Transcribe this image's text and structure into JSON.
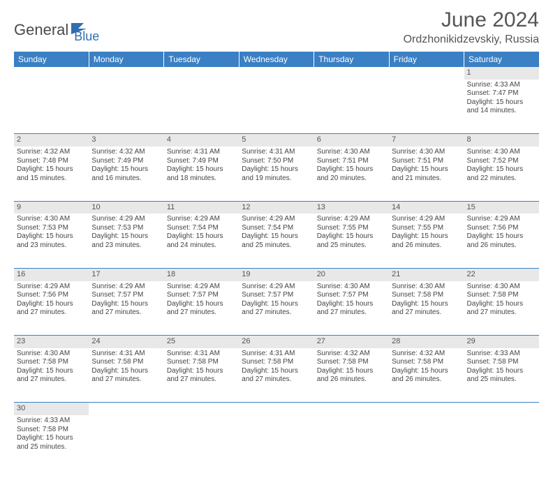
{
  "logo": {
    "text1": "General",
    "text2": "Blue"
  },
  "title": "June 2024",
  "location": "Ordzhonikidzevskiy, Russia",
  "colors": {
    "header_bg": "#3b7fc4",
    "header_text": "#ffffff",
    "daynum_bg": "#e8e8e8",
    "cell_border": "#3b7fc4",
    "body_text": "#444444",
    "logo_blue": "#2f6fb0"
  },
  "weekdays": [
    "Sunday",
    "Monday",
    "Tuesday",
    "Wednesday",
    "Thursday",
    "Friday",
    "Saturday"
  ],
  "weeks": [
    [
      null,
      null,
      null,
      null,
      null,
      null,
      {
        "n": "1",
        "sr": "Sunrise: 4:33 AM",
        "ss": "Sunset: 7:47 PM",
        "d1": "Daylight: 15 hours",
        "d2": "and 14 minutes."
      }
    ],
    [
      {
        "n": "2",
        "sr": "Sunrise: 4:32 AM",
        "ss": "Sunset: 7:48 PM",
        "d1": "Daylight: 15 hours",
        "d2": "and 15 minutes."
      },
      {
        "n": "3",
        "sr": "Sunrise: 4:32 AM",
        "ss": "Sunset: 7:49 PM",
        "d1": "Daylight: 15 hours",
        "d2": "and 16 minutes."
      },
      {
        "n": "4",
        "sr": "Sunrise: 4:31 AM",
        "ss": "Sunset: 7:49 PM",
        "d1": "Daylight: 15 hours",
        "d2": "and 18 minutes."
      },
      {
        "n": "5",
        "sr": "Sunrise: 4:31 AM",
        "ss": "Sunset: 7:50 PM",
        "d1": "Daylight: 15 hours",
        "d2": "and 19 minutes."
      },
      {
        "n": "6",
        "sr": "Sunrise: 4:30 AM",
        "ss": "Sunset: 7:51 PM",
        "d1": "Daylight: 15 hours",
        "d2": "and 20 minutes."
      },
      {
        "n": "7",
        "sr": "Sunrise: 4:30 AM",
        "ss": "Sunset: 7:51 PM",
        "d1": "Daylight: 15 hours",
        "d2": "and 21 minutes."
      },
      {
        "n": "8",
        "sr": "Sunrise: 4:30 AM",
        "ss": "Sunset: 7:52 PM",
        "d1": "Daylight: 15 hours",
        "d2": "and 22 minutes."
      }
    ],
    [
      {
        "n": "9",
        "sr": "Sunrise: 4:30 AM",
        "ss": "Sunset: 7:53 PM",
        "d1": "Daylight: 15 hours",
        "d2": "and 23 minutes."
      },
      {
        "n": "10",
        "sr": "Sunrise: 4:29 AM",
        "ss": "Sunset: 7:53 PM",
        "d1": "Daylight: 15 hours",
        "d2": "and 23 minutes."
      },
      {
        "n": "11",
        "sr": "Sunrise: 4:29 AM",
        "ss": "Sunset: 7:54 PM",
        "d1": "Daylight: 15 hours",
        "d2": "and 24 minutes."
      },
      {
        "n": "12",
        "sr": "Sunrise: 4:29 AM",
        "ss": "Sunset: 7:54 PM",
        "d1": "Daylight: 15 hours",
        "d2": "and 25 minutes."
      },
      {
        "n": "13",
        "sr": "Sunrise: 4:29 AM",
        "ss": "Sunset: 7:55 PM",
        "d1": "Daylight: 15 hours",
        "d2": "and 25 minutes."
      },
      {
        "n": "14",
        "sr": "Sunrise: 4:29 AM",
        "ss": "Sunset: 7:55 PM",
        "d1": "Daylight: 15 hours",
        "d2": "and 26 minutes."
      },
      {
        "n": "15",
        "sr": "Sunrise: 4:29 AM",
        "ss": "Sunset: 7:56 PM",
        "d1": "Daylight: 15 hours",
        "d2": "and 26 minutes."
      }
    ],
    [
      {
        "n": "16",
        "sr": "Sunrise: 4:29 AM",
        "ss": "Sunset: 7:56 PM",
        "d1": "Daylight: 15 hours",
        "d2": "and 27 minutes."
      },
      {
        "n": "17",
        "sr": "Sunrise: 4:29 AM",
        "ss": "Sunset: 7:57 PM",
        "d1": "Daylight: 15 hours",
        "d2": "and 27 minutes."
      },
      {
        "n": "18",
        "sr": "Sunrise: 4:29 AM",
        "ss": "Sunset: 7:57 PM",
        "d1": "Daylight: 15 hours",
        "d2": "and 27 minutes."
      },
      {
        "n": "19",
        "sr": "Sunrise: 4:29 AM",
        "ss": "Sunset: 7:57 PM",
        "d1": "Daylight: 15 hours",
        "d2": "and 27 minutes."
      },
      {
        "n": "20",
        "sr": "Sunrise: 4:30 AM",
        "ss": "Sunset: 7:57 PM",
        "d1": "Daylight: 15 hours",
        "d2": "and 27 minutes."
      },
      {
        "n": "21",
        "sr": "Sunrise: 4:30 AM",
        "ss": "Sunset: 7:58 PM",
        "d1": "Daylight: 15 hours",
        "d2": "and 27 minutes."
      },
      {
        "n": "22",
        "sr": "Sunrise: 4:30 AM",
        "ss": "Sunset: 7:58 PM",
        "d1": "Daylight: 15 hours",
        "d2": "and 27 minutes."
      }
    ],
    [
      {
        "n": "23",
        "sr": "Sunrise: 4:30 AM",
        "ss": "Sunset: 7:58 PM",
        "d1": "Daylight: 15 hours",
        "d2": "and 27 minutes."
      },
      {
        "n": "24",
        "sr": "Sunrise: 4:31 AM",
        "ss": "Sunset: 7:58 PM",
        "d1": "Daylight: 15 hours",
        "d2": "and 27 minutes."
      },
      {
        "n": "25",
        "sr": "Sunrise: 4:31 AM",
        "ss": "Sunset: 7:58 PM",
        "d1": "Daylight: 15 hours",
        "d2": "and 27 minutes."
      },
      {
        "n": "26",
        "sr": "Sunrise: 4:31 AM",
        "ss": "Sunset: 7:58 PM",
        "d1": "Daylight: 15 hours",
        "d2": "and 27 minutes."
      },
      {
        "n": "27",
        "sr": "Sunrise: 4:32 AM",
        "ss": "Sunset: 7:58 PM",
        "d1": "Daylight: 15 hours",
        "d2": "and 26 minutes."
      },
      {
        "n": "28",
        "sr": "Sunrise: 4:32 AM",
        "ss": "Sunset: 7:58 PM",
        "d1": "Daylight: 15 hours",
        "d2": "and 26 minutes."
      },
      {
        "n": "29",
        "sr": "Sunrise: 4:33 AM",
        "ss": "Sunset: 7:58 PM",
        "d1": "Daylight: 15 hours",
        "d2": "and 25 minutes."
      }
    ],
    [
      {
        "n": "30",
        "sr": "Sunrise: 4:33 AM",
        "ss": "Sunset: 7:58 PM",
        "d1": "Daylight: 15 hours",
        "d2": "and 25 minutes."
      },
      null,
      null,
      null,
      null,
      null,
      null
    ]
  ]
}
